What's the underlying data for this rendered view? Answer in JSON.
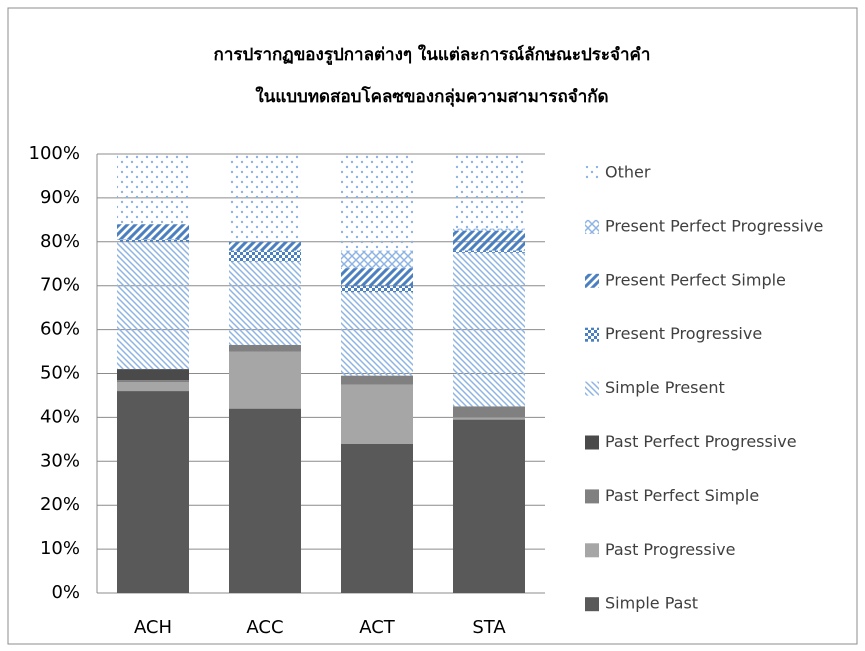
{
  "chart_data": {
    "type": "stacked_bar",
    "title": [
      "การปรากฏของรูปกาลต่างๆ ในแต่ละการณ์ลักษณะประจำคำ",
      "ในแบบทดสอบโคลซของกลุ่มความสามารถจำกัด"
    ],
    "categories": [
      "ACH",
      "ACC",
      "ACT",
      "STA"
    ],
    "series": [
      {
        "name": "Simple Past",
        "color": "#595959",
        "pattern": "solid",
        "values": [
          46,
          42,
          34,
          39.5
        ]
      },
      {
        "name": "Past Progressive",
        "color": "#a6a6a6",
        "pattern": "solid",
        "values": [
          2,
          13,
          13.5,
          0.5
        ]
      },
      {
        "name": "Past Perfect Simple",
        "color": "#808080",
        "pattern": "solid",
        "values": [
          0.5,
          1.5,
          2,
          2.5
        ]
      },
      {
        "name": "Past Perfect Progressive",
        "color": "#4a4a4a",
        "pattern": "solid",
        "values": [
          2.5,
          0,
          0,
          0
        ]
      },
      {
        "name": "Simple Present",
        "color": "#8eb4e3",
        "pattern": "thin-diagonal",
        "values": [
          29,
          19,
          19,
          35
        ]
      },
      {
        "name": "Present Progressive",
        "color": "#4a7fc1",
        "pattern": "checker",
        "values": [
          0.5,
          2.5,
          1.5,
          0.5
        ]
      },
      {
        "name": "Present Perfect Simple",
        "color": "#4a7fc1",
        "pattern": "wide-diagonal",
        "values": [
          3.5,
          2,
          4,
          4.5
        ]
      },
      {
        "name": "Present Perfect Progressive",
        "color": "#8eb4e3",
        "pattern": "cross",
        "values": [
          0,
          0,
          4,
          0.5
        ]
      },
      {
        "name": "Other",
        "color": "#8eb4e3",
        "pattern": "dots",
        "values": [
          16,
          20,
          22,
          17
        ]
      }
    ],
    "ylim": [
      0,
      100
    ],
    "yticks": [
      {
        "value": 0,
        "label": "0%"
      },
      {
        "value": 10,
        "label": "10%"
      },
      {
        "value": 20,
        "label": "20%"
      },
      {
        "value": 30,
        "label": "30%"
      },
      {
        "value": 40,
        "label": "40%"
      },
      {
        "value": 50,
        "label": "50%"
      },
      {
        "value": 60,
        "label": "60%"
      },
      {
        "value": 70,
        "label": "70%"
      },
      {
        "value": 80,
        "label": "80%"
      },
      {
        "value": 90,
        "label": "90%"
      },
      {
        "value": 100,
        "label": "100%"
      }
    ],
    "grid": true,
    "legend": "right"
  }
}
